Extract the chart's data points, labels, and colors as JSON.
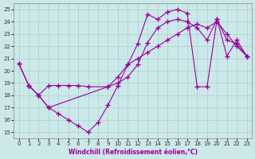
{
  "xlabel": "Windchill (Refroidissement éolien,°C)",
  "bg_color": "#cce8e8",
  "line_color": "#990099",
  "grid_color": "#aad0d0",
  "xlim": [
    -0.5,
    23.5
  ],
  "ylim": [
    14.5,
    25.5
  ],
  "xticks": [
    0,
    1,
    2,
    3,
    4,
    5,
    6,
    7,
    8,
    9,
    10,
    11,
    12,
    13,
    14,
    15,
    16,
    17,
    18,
    19,
    20,
    21,
    22,
    23
  ],
  "yticks": [
    15,
    16,
    17,
    18,
    19,
    20,
    21,
    22,
    23,
    24,
    25
  ],
  "line1_x": [
    0,
    1,
    2,
    3,
    4,
    5,
    6,
    7,
    8,
    9,
    10,
    11,
    12,
    13,
    14,
    15,
    16,
    17,
    18,
    19,
    20,
    21,
    22,
    23
  ],
  "line1_y": [
    20.6,
    18.8,
    18.0,
    17.0,
    16.5,
    16.0,
    15.5,
    15.0,
    15.8,
    17.2,
    18.8,
    20.5,
    22.2,
    24.6,
    24.2,
    24.8,
    25.0,
    24.7,
    18.7,
    18.7,
    24.2,
    22.5,
    22.2,
    21.2
  ],
  "line2_x": [
    0,
    1,
    2,
    3,
    4,
    5,
    6,
    7,
    9,
    10,
    11,
    12,
    13,
    14,
    15,
    16,
    17,
    18,
    19,
    20,
    21,
    22,
    23
  ],
  "line2_y": [
    20.6,
    18.8,
    18.0,
    18.8,
    18.8,
    18.8,
    18.8,
    18.7,
    18.7,
    19.0,
    19.5,
    20.5,
    22.3,
    23.5,
    24.0,
    24.2,
    24.0,
    23.5,
    22.5,
    24.2,
    21.2,
    22.5,
    21.2
  ],
  "line3_x": [
    1,
    2,
    3,
    9,
    10,
    11,
    12,
    13,
    14,
    15,
    16,
    17,
    18,
    19,
    20,
    21,
    22,
    23
  ],
  "line3_y": [
    18.8,
    18.0,
    17.0,
    18.7,
    19.5,
    20.5,
    21.0,
    21.5,
    22.0,
    22.5,
    23.0,
    23.5,
    23.8,
    23.5,
    24.0,
    23.0,
    22.0,
    21.2
  ]
}
